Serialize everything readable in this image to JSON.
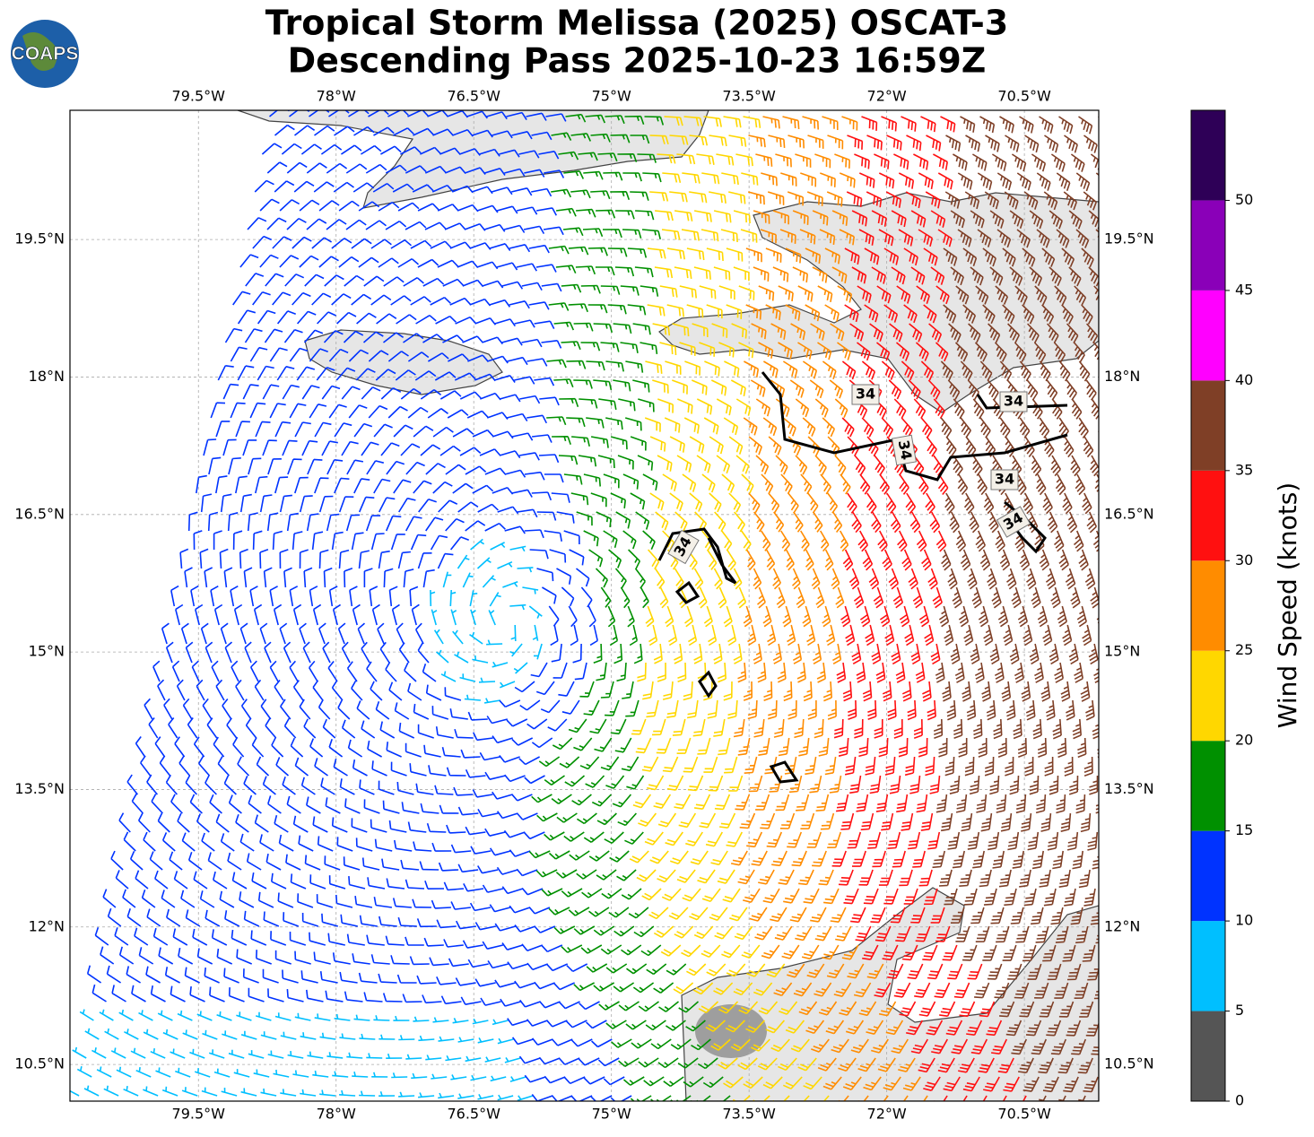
{
  "header": {
    "title_line1": "Tropical Storm Melissa (2025) OSCAT-3",
    "title_line2": "Descending Pass 2025-10-23 16:59Z",
    "logo": "COAPS"
  },
  "map": {
    "xlim": [
      -80.9,
      -69.69
    ],
    "ylim": [
      10.1,
      20.91
    ],
    "grid": true,
    "xticks": [
      {
        "value": -79.5,
        "label": "79.5°W"
      },
      {
        "value": -78,
        "label": "78°W"
      },
      {
        "value": -76.5,
        "label": "76.5°W"
      },
      {
        "value": -75,
        "label": "75°W"
      },
      {
        "value": -73.5,
        "label": "73.5°W"
      },
      {
        "value": -72,
        "label": "72°W"
      },
      {
        "value": -70.5,
        "label": "70.5°W"
      }
    ],
    "yticks": [
      {
        "value": 10.5,
        "label": "10.5°N"
      },
      {
        "value": 12,
        "label": "12°N"
      },
      {
        "value": 13.5,
        "label": "13.5°N"
      },
      {
        "value": 15,
        "label": "15°N"
      },
      {
        "value": 16.5,
        "label": "16.5°N"
      },
      {
        "value": 18,
        "label": "18°N"
      },
      {
        "value": 19.5,
        "label": "19.5°N"
      }
    ],
    "contour_label": "34"
  },
  "colorbar": {
    "label": "Wind Speed (knots)",
    "lim": [
      0,
      55
    ],
    "ticks": [
      0,
      5,
      10,
      15,
      20,
      25,
      30,
      35,
      40,
      45,
      50
    ],
    "colors": [
      "#555555",
      "#00bfff",
      "#0033ff",
      "#009000",
      "#ffd700",
      "#ff8c00",
      "#ff1010",
      "#7f3f26",
      "#ff00ff",
      "#8a00b8",
      "#2e0057"
    ]
  }
}
